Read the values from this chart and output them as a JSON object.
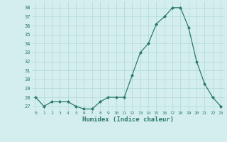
{
  "x": [
    0,
    1,
    2,
    3,
    4,
    5,
    6,
    7,
    8,
    9,
    10,
    11,
    12,
    13,
    14,
    15,
    16,
    17,
    18,
    19,
    20,
    21,
    22,
    23
  ],
  "y": [
    28,
    27,
    27.5,
    27.5,
    27.5,
    27,
    26.7,
    26.7,
    27.5,
    28,
    28,
    28,
    30.5,
    33,
    34,
    36.2,
    37,
    38,
    38,
    35.8,
    32,
    29.5,
    28,
    27
  ],
  "line_color": "#2a7a6a",
  "marker_color": "#2a7a6a",
  "bg_color": "#d4eeee",
  "grid_color": "#b0d8d8",
  "xlabel": "Humidex (Indice chaleur)",
  "ylim": [
    26.5,
    38.7
  ],
  "yticks": [
    27,
    28,
    29,
    30,
    31,
    32,
    33,
    34,
    35,
    36,
    37,
    38
  ],
  "xticks": [
    0,
    1,
    2,
    3,
    4,
    5,
    6,
    7,
    8,
    9,
    10,
    11,
    12,
    13,
    14,
    15,
    16,
    17,
    18,
    19,
    20,
    21,
    22,
    23
  ],
  "xtick_labels": [
    "0",
    "1",
    "2",
    "3",
    "4",
    "5",
    "6",
    "7",
    "8",
    "9",
    "10",
    "11",
    "12",
    "13",
    "14",
    "15",
    "16",
    "17",
    "18",
    "19",
    "20",
    "21",
    "22",
    "23"
  ],
  "font_color": "#2a7a6a"
}
